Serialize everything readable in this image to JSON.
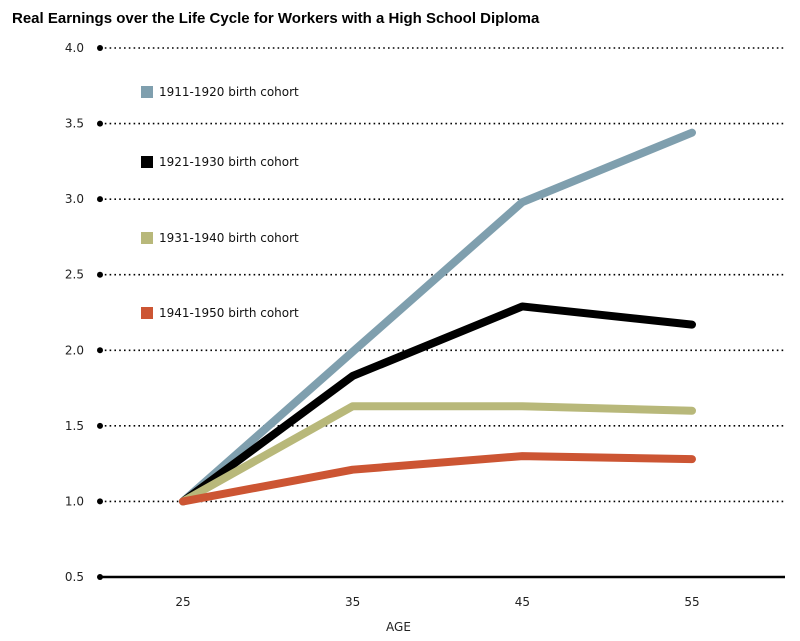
{
  "chart_data": {
    "type": "line",
    "title": "Real Earnings over the Life Cycle for Workers with a High School Diploma",
    "xlabel": "AGE",
    "ylabel": "",
    "x": [
      25,
      35,
      45,
      55
    ],
    "xlim": [
      20,
      60
    ],
    "ylim": [
      0.5,
      4.0
    ],
    "yticks": [
      "0.5",
      "1.0",
      "1.5",
      "2.0",
      "2.5",
      "3.0",
      "3.5",
      "4.0"
    ],
    "xticks": [
      "25",
      "35",
      "45",
      "55"
    ],
    "grid": true,
    "legend_position": "top-left",
    "series": [
      {
        "name": "1911-1920 birth cohort",
        "color": "#7f9fae",
        "values": [
          1.0,
          1.99,
          2.98,
          3.44
        ]
      },
      {
        "name": "1921-1930 birth cohort",
        "color": "#000000",
        "values": [
          1.0,
          1.83,
          2.29,
          2.17
        ]
      },
      {
        "name": "1931-1940 birth cohort",
        "color": "#b8b87a",
        "values": [
          1.0,
          1.63,
          1.63,
          1.6
        ]
      },
      {
        "name": "1941-1950 birth cohort",
        "color": "#cc5533",
        "values": [
          1.0,
          1.21,
          1.3,
          1.28
        ]
      }
    ]
  }
}
